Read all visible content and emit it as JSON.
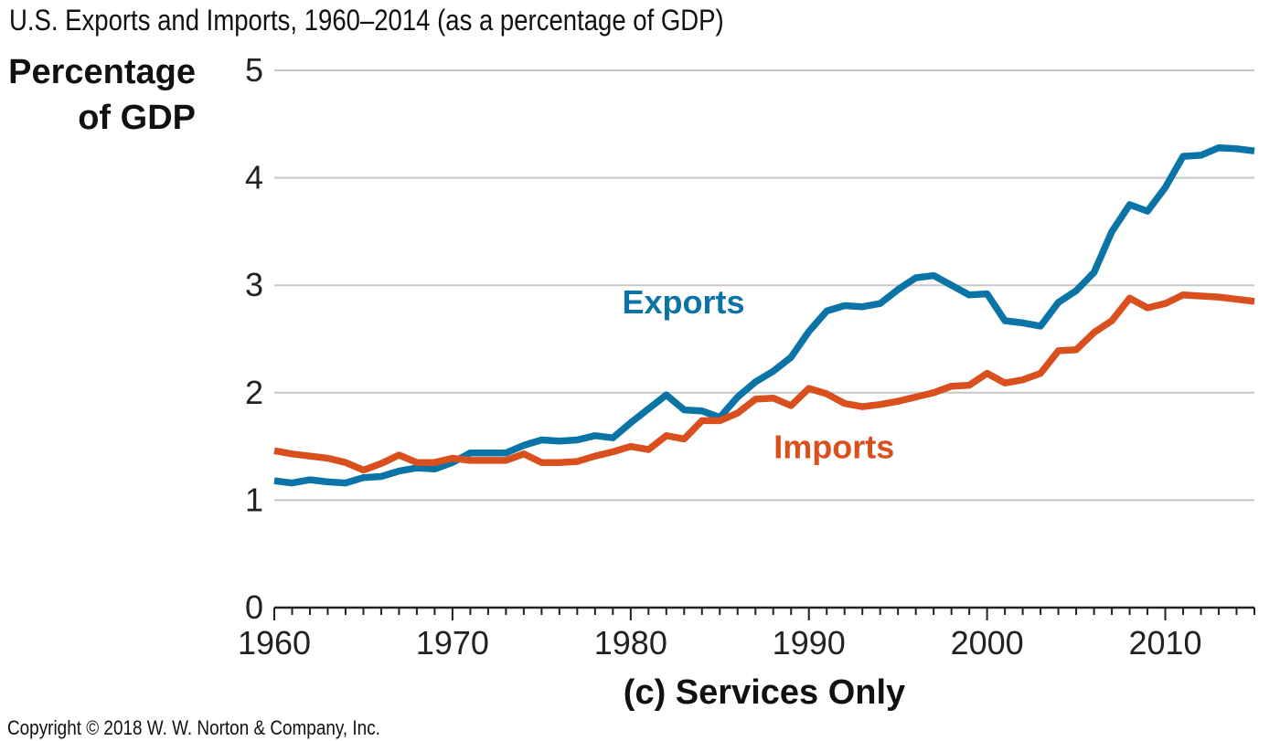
{
  "title": "U.S. Exports and Imports, 1960–2014 (as a percentage of GDP)",
  "copyright": "Copyright © 2018 W. W. Norton & Company, Inc.",
  "chart_data": {
    "type": "line",
    "title": "U.S. Exports and Imports, 1960–2014 (as a percentage of GDP)",
    "subtitle": "(c) Services Only",
    "ylabel": [
      "Percentage",
      "of GDP"
    ],
    "xlabel": "",
    "xlim": [
      1960,
      2015
    ],
    "ylim": [
      0,
      5
    ],
    "x_ticks": [
      1960,
      1970,
      1980,
      1990,
      2000,
      2010
    ],
    "y_ticks": [
      0,
      1,
      2,
      3,
      4,
      5
    ],
    "grid": "horizontal",
    "legend": "inline labels",
    "x": [
      1960,
      1961,
      1962,
      1963,
      1964,
      1965,
      1966,
      1967,
      1968,
      1969,
      1970,
      1971,
      1972,
      1973,
      1974,
      1975,
      1976,
      1977,
      1978,
      1979,
      1980,
      1981,
      1982,
      1983,
      1984,
      1985,
      1986,
      1987,
      1988,
      1989,
      1990,
      1991,
      1992,
      1993,
      1994,
      1995,
      1996,
      1997,
      1998,
      1999,
      2000,
      2001,
      2002,
      2003,
      2004,
      2005,
      2006,
      2007,
      2008,
      2009,
      2010,
      2011,
      2012,
      2013,
      2014,
      2015
    ],
    "series": [
      {
        "name": "Exports",
        "color": "#0a74a6",
        "values": [
          1.18,
          1.16,
          1.19,
          1.17,
          1.16,
          1.21,
          1.22,
          1.27,
          1.3,
          1.29,
          1.35,
          1.44,
          1.44,
          1.44,
          1.51,
          1.56,
          1.55,
          1.56,
          1.6,
          1.58,
          1.72,
          1.85,
          1.98,
          1.84,
          1.83,
          1.77,
          1.96,
          2.1,
          2.2,
          2.33,
          2.57,
          2.76,
          2.81,
          2.8,
          2.83,
          2.96,
          3.07,
          3.09,
          3.0,
          2.91,
          2.92,
          2.67,
          2.65,
          2.62,
          2.84,
          2.95,
          3.12,
          3.5,
          3.75,
          3.69,
          3.91,
          4.2,
          4.21,
          4.28,
          4.27,
          4.25
        ]
      },
      {
        "name": "Imports",
        "color": "#d9501e",
        "values": [
          1.46,
          1.43,
          1.41,
          1.39,
          1.35,
          1.28,
          1.34,
          1.42,
          1.35,
          1.35,
          1.39,
          1.37,
          1.37,
          1.37,
          1.43,
          1.35,
          1.35,
          1.36,
          1.41,
          1.45,
          1.5,
          1.47,
          1.6,
          1.57,
          1.74,
          1.74,
          1.81,
          1.94,
          1.95,
          1.88,
          2.04,
          1.99,
          1.9,
          1.87,
          1.89,
          1.92,
          1.96,
          2.0,
          2.06,
          2.07,
          2.18,
          2.09,
          2.12,
          2.18,
          2.39,
          2.4,
          2.56,
          2.67,
          2.88,
          2.79,
          2.83,
          2.91,
          2.9,
          2.89,
          2.87,
          2.85
        ]
      }
    ],
    "annotations": [
      {
        "text": "Exports",
        "series": "Exports",
        "color": "#0a74a6"
      },
      {
        "text": "Imports",
        "series": "Imports",
        "color": "#d9501e"
      }
    ]
  }
}
